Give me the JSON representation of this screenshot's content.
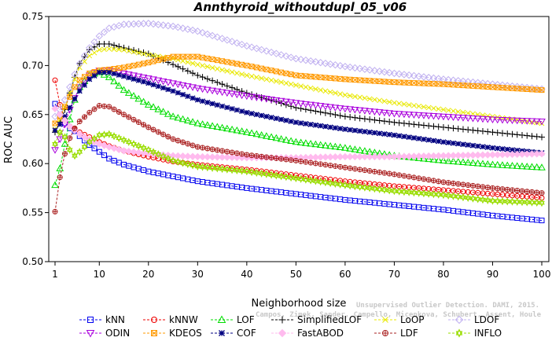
{
  "chart_data": {
    "type": "line",
    "title": "Annthyroid_withoutdupl_05_v06",
    "xlabel": "Neighborhood size",
    "ylabel": "ROC AUC",
    "xlim": [
      1,
      100
    ],
    "ylim": [
      0.5,
      0.75
    ],
    "xticks": [
      1,
      10,
      20,
      30,
      40,
      50,
      60,
      70,
      80,
      90,
      100
    ],
    "yticks": [
      "0.50",
      "0.55",
      "0.60",
      "0.65",
      "0.70",
      "0.75"
    ],
    "grid": false,
    "legend_position": "bottom",
    "watermark": [
      "Unsupervised Outlier Detection. DAMI, 2015.",
      "Campos, Zimek, Sander, Campello, Micenkova, Schubert, Assent, Houle"
    ],
    "series": [
      {
        "name": "kNN",
        "color": "#0000ee",
        "marker": "square",
        "x": [
          1,
          2,
          3,
          4,
          5,
          6,
          8,
          10,
          12,
          15,
          20,
          25,
          30,
          40,
          50,
          60,
          70,
          80,
          90,
          100
        ],
        "y": [
          0.661,
          0.649,
          0.641,
          0.636,
          0.633,
          0.628,
          0.619,
          0.612,
          0.605,
          0.599,
          0.592,
          0.587,
          0.582,
          0.575,
          0.569,
          0.563,
          0.558,
          0.553,
          0.547,
          0.542
        ]
      },
      {
        "name": "kNNW",
        "color": "#ee0000",
        "marker": "circle",
        "x": [
          1,
          2,
          3,
          4,
          5,
          6,
          8,
          10,
          12,
          15,
          20,
          25,
          30,
          40,
          50,
          60,
          70,
          80,
          90,
          100
        ],
        "y": [
          0.685,
          0.66,
          0.645,
          0.638,
          0.635,
          0.632,
          0.627,
          0.622,
          0.618,
          0.613,
          0.607,
          0.602,
          0.599,
          0.594,
          0.588,
          0.582,
          0.577,
          0.573,
          0.569,
          0.565
        ]
      },
      {
        "name": "LOF",
        "color": "#00dd00",
        "marker": "triangle",
        "x": [
          1,
          2,
          3,
          4,
          5,
          6,
          8,
          10,
          12,
          15,
          20,
          25,
          30,
          40,
          50,
          60,
          70,
          80,
          90,
          100
        ],
        "y": [
          0.578,
          0.595,
          0.62,
          0.645,
          0.665,
          0.678,
          0.69,
          0.693,
          0.688,
          0.675,
          0.66,
          0.648,
          0.641,
          0.632,
          0.622,
          0.616,
          0.608,
          0.603,
          0.599,
          0.596
        ]
      },
      {
        "name": "SimplifiedLOF",
        "color": "#000000",
        "marker": "plus",
        "x": [
          1,
          2,
          3,
          4,
          5,
          6,
          8,
          10,
          12,
          15,
          20,
          25,
          30,
          40,
          50,
          60,
          70,
          80,
          90,
          100
        ],
        "y": [
          0.632,
          0.642,
          0.655,
          0.672,
          0.688,
          0.702,
          0.716,
          0.722,
          0.722,
          0.718,
          0.712,
          0.701,
          0.69,
          0.672,
          0.657,
          0.648,
          0.642,
          0.637,
          0.632,
          0.627
        ]
      },
      {
        "name": "LoOP",
        "color": "#e8e800",
        "marker": "cross",
        "x": [
          1,
          2,
          3,
          4,
          5,
          6,
          8,
          10,
          12,
          15,
          20,
          25,
          30,
          40,
          50,
          60,
          70,
          80,
          90,
          100
        ],
        "y": [
          0.635,
          0.645,
          0.657,
          0.672,
          0.686,
          0.698,
          0.71,
          0.716,
          0.717,
          0.716,
          0.711,
          0.707,
          0.701,
          0.69,
          0.68,
          0.67,
          0.662,
          0.655,
          0.648,
          0.641
        ]
      },
      {
        "name": "LDOF",
        "color": "#c0b0f0",
        "marker": "diamond",
        "x": [
          1,
          2,
          3,
          4,
          5,
          6,
          8,
          10,
          12,
          15,
          20,
          25,
          30,
          40,
          50,
          60,
          70,
          80,
          90,
          100
        ],
        "y": [
          0.648,
          0.655,
          0.665,
          0.678,
          0.691,
          0.702,
          0.718,
          0.73,
          0.738,
          0.742,
          0.743,
          0.74,
          0.735,
          0.72,
          0.707,
          0.699,
          0.692,
          0.686,
          0.681,
          0.676
        ]
      },
      {
        "name": "ODIN",
        "color": "#aa00dd",
        "marker": "triangle-down",
        "x": [
          1,
          2,
          3,
          4,
          5,
          6,
          8,
          10,
          12,
          15,
          20,
          25,
          30,
          40,
          50,
          60,
          70,
          80,
          90,
          100
        ],
        "y": [
          0.614,
          0.625,
          0.64,
          0.655,
          0.667,
          0.678,
          0.69,
          0.695,
          0.695,
          0.692,
          0.687,
          0.682,
          0.677,
          0.669,
          0.662,
          0.656,
          0.651,
          0.648,
          0.645,
          0.643
        ]
      },
      {
        "name": "KDEOS",
        "color": "#ff9900",
        "marker": "square-x",
        "x": [
          1,
          2,
          3,
          4,
          5,
          6,
          8,
          10,
          12,
          15,
          20,
          25,
          30,
          40,
          50,
          60,
          70,
          80,
          90,
          100
        ],
        "y": [
          0.641,
          0.648,
          0.658,
          0.668,
          0.678,
          0.685,
          0.692,
          0.695,
          0.696,
          0.698,
          0.703,
          0.709,
          0.709,
          0.7,
          0.69,
          0.686,
          0.683,
          0.681,
          0.678,
          0.675
        ]
      },
      {
        "name": "COF",
        "color": "#000080",
        "marker": "asterisk",
        "x": [
          1,
          2,
          3,
          4,
          5,
          6,
          8,
          10,
          12,
          15,
          20,
          25,
          30,
          40,
          50,
          60,
          70,
          80,
          90,
          100
        ],
        "y": [
          0.634,
          0.64,
          0.648,
          0.657,
          0.666,
          0.674,
          0.686,
          0.693,
          0.693,
          0.689,
          0.682,
          0.674,
          0.665,
          0.652,
          0.642,
          0.635,
          0.629,
          0.622,
          0.616,
          0.611
        ]
      },
      {
        "name": "FastABOD",
        "color": "#ffbbee",
        "marker": "diamond-filled",
        "x": [
          1,
          2,
          3,
          4,
          5,
          6,
          8,
          10,
          12,
          15,
          20,
          25,
          30,
          40,
          50,
          60,
          70,
          80,
          90,
          100
        ],
        "y": [
          0.656,
          0.65,
          0.644,
          0.638,
          0.634,
          0.63,
          0.624,
          0.62,
          0.617,
          0.613,
          0.61,
          0.608,
          0.607,
          0.606,
          0.606,
          0.607,
          0.607,
          0.608,
          0.609,
          0.61
        ]
      },
      {
        "name": "LDF",
        "color": "#aa2020",
        "marker": "circle-plus",
        "x": [
          1,
          2,
          3,
          4,
          5,
          6,
          8,
          10,
          12,
          15,
          20,
          25,
          30,
          40,
          50,
          60,
          70,
          80,
          90,
          100
        ],
        "y": [
          0.551,
          0.586,
          0.61,
          0.626,
          0.636,
          0.643,
          0.652,
          0.659,
          0.658,
          0.65,
          0.637,
          0.625,
          0.617,
          0.609,
          0.603,
          0.596,
          0.589,
          0.581,
          0.575,
          0.57
        ]
      },
      {
        "name": "INFLO",
        "color": "#99dd00",
        "marker": "star",
        "x": [
          1,
          2,
          3,
          4,
          5,
          6,
          8,
          10,
          12,
          15,
          20,
          25,
          30,
          40,
          50,
          60,
          70,
          80,
          90,
          100
        ],
        "y": [
          0.62,
          0.632,
          0.627,
          0.614,
          0.608,
          0.612,
          0.622,
          0.629,
          0.63,
          0.624,
          0.614,
          0.603,
          0.597,
          0.592,
          0.585,
          0.578,
          0.572,
          0.568,
          0.562,
          0.56
        ]
      }
    ]
  }
}
